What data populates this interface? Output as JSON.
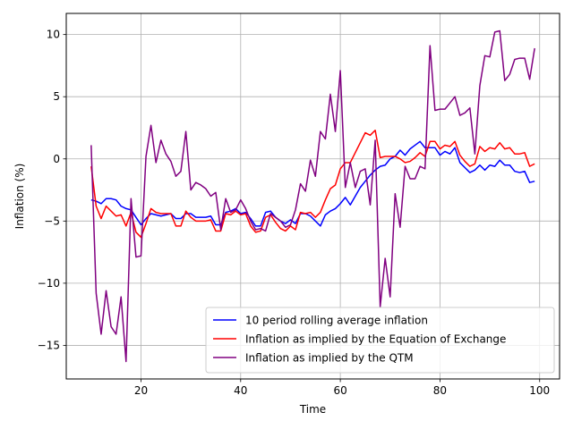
{
  "chart_data": {
    "type": "line",
    "title": "",
    "xlabel": "Time",
    "ylabel": "Inflation (%)",
    "xlim": [
      5,
      104
    ],
    "ylim": [
      -17.7,
      11.7
    ],
    "xticks": [
      20,
      40,
      60,
      80,
      100
    ],
    "yticks": [
      -15,
      -10,
      -5,
      0,
      5,
      10
    ],
    "xtick_labels": [
      "20",
      "40",
      "60",
      "80",
      "100"
    ],
    "ytick_labels": [
      "−15",
      "−10",
      "−5",
      "0",
      "5",
      "10"
    ],
    "grid": true,
    "legend_position": "lower-right",
    "x": [
      10,
      11,
      12,
      13,
      14,
      15,
      16,
      17,
      18,
      19,
      20,
      21,
      22,
      23,
      24,
      25,
      26,
      27,
      28,
      29,
      30,
      31,
      32,
      33,
      34,
      35,
      36,
      37,
      38,
      39,
      40,
      41,
      42,
      43,
      44,
      45,
      46,
      47,
      48,
      49,
      50,
      51,
      52,
      53,
      54,
      55,
      56,
      57,
      58,
      59,
      60,
      61,
      62,
      63,
      64,
      65,
      66,
      67,
      68,
      69,
      70,
      71,
      72,
      73,
      74,
      75,
      76,
      77,
      78,
      79,
      80,
      81,
      82,
      83,
      84,
      85,
      86,
      87,
      88,
      89,
      90,
      91,
      92,
      93,
      94,
      95,
      96,
      97,
      98,
      99
    ],
    "series": [
      {
        "name": "10 period rolling average inflation",
        "color": "#0000ff",
        "values": [
          -3.3,
          -3.4,
          -3.6,
          -3.2,
          -3.2,
          -3.3,
          -3.8,
          -4.0,
          -4.1,
          -4.7,
          -5.3,
          -4.8,
          -4.4,
          -4.5,
          -4.6,
          -4.5,
          -4.4,
          -4.8,
          -4.8,
          -4.4,
          -4.4,
          -4.7,
          -4.7,
          -4.7,
          -4.6,
          -5.3,
          -5.3,
          -4.3,
          -4.2,
          -4.0,
          -4.4,
          -4.3,
          -4.8,
          -5.4,
          -5.4,
          -4.3,
          -4.2,
          -4.7,
          -5.0,
          -5.2,
          -4.9,
          -5.2,
          -4.4,
          -4.4,
          -4.6,
          -5.0,
          -5.4,
          -4.5,
          -4.2,
          -4.0,
          -3.6,
          -3.1,
          -3.7,
          -3.0,
          -2.3,
          -1.8,
          -1.3,
          -0.9,
          -0.6,
          -0.5,
          0.0,
          0.2,
          0.7,
          0.3,
          0.8,
          1.1,
          1.4,
          0.9,
          0.9,
          0.9,
          0.3,
          0.6,
          0.4,
          0.9,
          -0.3,
          -0.7,
          -1.1,
          -0.9,
          -0.5,
          -0.9,
          -0.5,
          -0.6,
          -0.1,
          -0.5,
          -0.5,
          -1.0,
          -1.1,
          -1.0,
          -1.9,
          -1.8
        ]
      },
      {
        "name": "Inflation as implied by the Equation of Exchange",
        "color": "#ff0000",
        "values": [
          -0.6,
          -3.8,
          -4.8,
          -3.8,
          -4.2,
          -4.6,
          -4.5,
          -5.4,
          -4.3,
          -5.9,
          -6.3,
          -5.2,
          -4.0,
          -4.3,
          -4.4,
          -4.4,
          -4.4,
          -5.4,
          -5.4,
          -4.2,
          -4.7,
          -5.0,
          -5.0,
          -5.0,
          -4.9,
          -5.8,
          -5.8,
          -4.4,
          -4.5,
          -4.2,
          -4.5,
          -4.4,
          -5.4,
          -5.9,
          -5.8,
          -4.7,
          -4.5,
          -5.1,
          -5.6,
          -5.8,
          -5.4,
          -5.7,
          -4.3,
          -4.4,
          -4.3,
          -4.7,
          -4.3,
          -3.3,
          -2.4,
          -2.1,
          -0.8,
          -0.3,
          -0.3,
          0.5,
          1.3,
          2.1,
          1.9,
          2.3,
          0.1,
          0.2,
          0.2,
          0.2,
          0.0,
          -0.3,
          -0.2,
          0.1,
          0.5,
          0.2,
          1.4,
          1.4,
          0.8,
          1.1,
          1.0,
          1.4,
          0.3,
          -0.2,
          -0.6,
          -0.4,
          1.0,
          0.6,
          0.9,
          0.8,
          1.3,
          0.8,
          0.9,
          0.4,
          0.4,
          0.5,
          -0.6,
          -0.4
        ]
      },
      {
        "name": "Inflation as implied by the QTM",
        "color": "#800080",
        "values": [
          1.1,
          -10.8,
          -14.1,
          -10.6,
          -13.5,
          -14.1,
          -11.1,
          -16.3,
          -3.2,
          -7.9,
          -7.8,
          0.2,
          2.7,
          -0.3,
          1.5,
          0.4,
          -0.2,
          -1.4,
          -1.0,
          2.2,
          -2.5,
          -1.9,
          -2.1,
          -2.4,
          -3.0,
          -2.7,
          -5.7,
          -3.2,
          -4.3,
          -4.1,
          -3.3,
          -4.0,
          -5.0,
          -5.7,
          -5.6,
          -5.8,
          -4.4,
          -4.7,
          -5.0,
          -5.5,
          -5.3,
          -4.1,
          -2.0,
          -2.6,
          -0.1,
          -1.4,
          2.2,
          1.6,
          5.2,
          2.2,
          7.1,
          -2.3,
          -0.3,
          -2.3,
          -1.0,
          -0.8,
          -3.7,
          1.5,
          -11.9,
          -8.0,
          -11.1,
          -2.8,
          -5.5,
          -0.6,
          -1.6,
          -1.6,
          -0.6,
          -0.8,
          9.1,
          3.9,
          4.0,
          4.0,
          4.5,
          5.0,
          3.5,
          3.7,
          4.1,
          0.4,
          5.9,
          8.3,
          8.2,
          10.2,
          10.3,
          6.3,
          6.8,
          8.0,
          8.1,
          8.1,
          6.4,
          8.9
        ]
      }
    ]
  }
}
